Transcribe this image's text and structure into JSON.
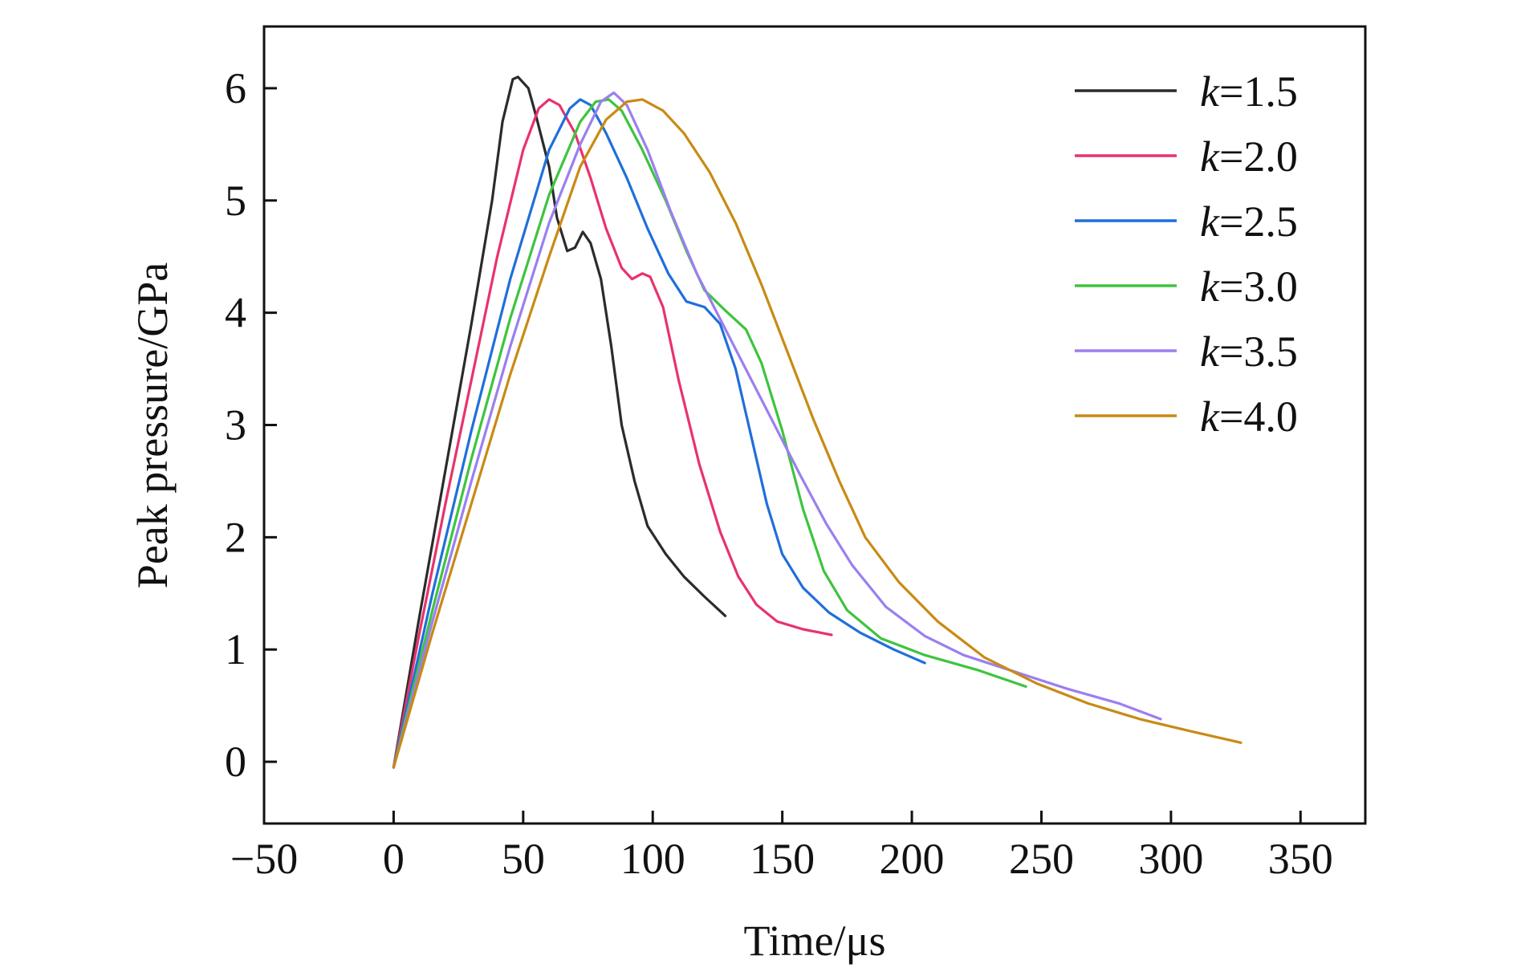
{
  "chart_data": {
    "type": "line",
    "title": "",
    "xlabel": "Time/μs",
    "ylabel": "Peak pressure/GPa",
    "xlim": [
      -50,
      375
    ],
    "ylim": [
      -0.55,
      6.55
    ],
    "xticks": [
      -50,
      0,
      50,
      100,
      150,
      200,
      250,
      300,
      350
    ],
    "xtick_labels": [
      "−50",
      "0",
      "50",
      "100",
      "150",
      "200",
      "250",
      "300",
      "350"
    ],
    "yticks": [
      0,
      1,
      2,
      3,
      4,
      5,
      6
    ],
    "ytick_labels": [
      "0",
      "1",
      "2",
      "3",
      "4",
      "5",
      "6"
    ],
    "grid": false,
    "legend": {
      "position": "top-right",
      "prefix": "k",
      "separator": "="
    },
    "series": [
      {
        "name": "1.5",
        "color": "#2b2b2b",
        "points": [
          [
            0,
            -0.05
          ],
          [
            10,
            1.3
          ],
          [
            20,
            2.6
          ],
          [
            30,
            3.9
          ],
          [
            38,
            5.0
          ],
          [
            42,
            5.7
          ],
          [
            46,
            6.08
          ],
          [
            48,
            6.1
          ],
          [
            52,
            6.0
          ],
          [
            55,
            5.75
          ],
          [
            60,
            5.3
          ],
          [
            63,
            4.85
          ],
          [
            67,
            4.55
          ],
          [
            70,
            4.58
          ],
          [
            73,
            4.72
          ],
          [
            76,
            4.62
          ],
          [
            80,
            4.3
          ],
          [
            84,
            3.7
          ],
          [
            88,
            3.0
          ],
          [
            93,
            2.5
          ],
          [
            98,
            2.1
          ],
          [
            105,
            1.85
          ],
          [
            112,
            1.65
          ],
          [
            120,
            1.47
          ],
          [
            128,
            1.3
          ]
        ]
      },
      {
        "name": "2.0",
        "color": "#e8336b",
        "points": [
          [
            0,
            -0.05
          ],
          [
            10,
            1.15
          ],
          [
            20,
            2.3
          ],
          [
            30,
            3.4
          ],
          [
            40,
            4.5
          ],
          [
            50,
            5.45
          ],
          [
            56,
            5.82
          ],
          [
            60,
            5.9
          ],
          [
            64,
            5.85
          ],
          [
            70,
            5.6
          ],
          [
            76,
            5.2
          ],
          [
            82,
            4.75
          ],
          [
            88,
            4.4
          ],
          [
            92,
            4.3
          ],
          [
            96,
            4.35
          ],
          [
            99,
            4.32
          ],
          [
            104,
            4.05
          ],
          [
            110,
            3.4
          ],
          [
            118,
            2.65
          ],
          [
            126,
            2.05
          ],
          [
            133,
            1.65
          ],
          [
            140,
            1.4
          ],
          [
            148,
            1.25
          ],
          [
            158,
            1.18
          ],
          [
            169,
            1.13
          ]
        ]
      },
      {
        "name": "2.5",
        "color": "#1f6fdb",
        "points": [
          [
            0,
            -0.05
          ],
          [
            15,
            1.5
          ],
          [
            30,
            2.95
          ],
          [
            45,
            4.3
          ],
          [
            60,
            5.45
          ],
          [
            68,
            5.82
          ],
          [
            72,
            5.9
          ],
          [
            76,
            5.85
          ],
          [
            82,
            5.6
          ],
          [
            90,
            5.2
          ],
          [
            98,
            4.75
          ],
          [
            106,
            4.35
          ],
          [
            113,
            4.1
          ],
          [
            120,
            4.05
          ],
          [
            126,
            3.9
          ],
          [
            132,
            3.5
          ],
          [
            138,
            2.9
          ],
          [
            144,
            2.3
          ],
          [
            150,
            1.85
          ],
          [
            158,
            1.55
          ],
          [
            168,
            1.33
          ],
          [
            180,
            1.15
          ],
          [
            193,
            1.0
          ],
          [
            205,
            0.88
          ]
        ]
      },
      {
        "name": "3.0",
        "color": "#3ec43e",
        "points": [
          [
            0,
            -0.05
          ],
          [
            15,
            1.35
          ],
          [
            30,
            2.7
          ],
          [
            45,
            3.95
          ],
          [
            60,
            5.05
          ],
          [
            72,
            5.7
          ],
          [
            78,
            5.88
          ],
          [
            83,
            5.9
          ],
          [
            88,
            5.8
          ],
          [
            96,
            5.45
          ],
          [
            105,
            5.0
          ],
          [
            113,
            4.55
          ],
          [
            120,
            4.2
          ],
          [
            128,
            4.02
          ],
          [
            136,
            3.85
          ],
          [
            142,
            3.55
          ],
          [
            150,
            2.95
          ],
          [
            158,
            2.25
          ],
          [
            166,
            1.7
          ],
          [
            175,
            1.35
          ],
          [
            188,
            1.1
          ],
          [
            205,
            0.95
          ],
          [
            225,
            0.82
          ],
          [
            244,
            0.67
          ]
        ]
      },
      {
        "name": "3.5",
        "color": "#9b7ff0",
        "points": [
          [
            0,
            -0.05
          ],
          [
            15,
            1.25
          ],
          [
            30,
            2.5
          ],
          [
            45,
            3.7
          ],
          [
            60,
            4.8
          ],
          [
            72,
            5.5
          ],
          [
            80,
            5.88
          ],
          [
            85,
            5.96
          ],
          [
            90,
            5.85
          ],
          [
            98,
            5.45
          ],
          [
            107,
            4.9
          ],
          [
            117,
            4.35
          ],
          [
            127,
            3.9
          ],
          [
            137,
            3.45
          ],
          [
            147,
            3.0
          ],
          [
            157,
            2.55
          ],
          [
            167,
            2.12
          ],
          [
            177,
            1.75
          ],
          [
            190,
            1.38
          ],
          [
            205,
            1.12
          ],
          [
            220,
            0.95
          ],
          [
            240,
            0.8
          ],
          [
            260,
            0.65
          ],
          [
            280,
            0.52
          ],
          [
            296,
            0.38
          ]
        ]
      },
      {
        "name": "4.0",
        "color": "#c98a14",
        "points": [
          [
            0,
            -0.05
          ],
          [
            15,
            1.15
          ],
          [
            30,
            2.3
          ],
          [
            45,
            3.45
          ],
          [
            60,
            4.5
          ],
          [
            72,
            5.3
          ],
          [
            82,
            5.72
          ],
          [
            90,
            5.88
          ],
          [
            96,
            5.9
          ],
          [
            104,
            5.8
          ],
          [
            112,
            5.6
          ],
          [
            122,
            5.25
          ],
          [
            132,
            4.8
          ],
          [
            142,
            4.25
          ],
          [
            152,
            3.65
          ],
          [
            162,
            3.05
          ],
          [
            172,
            2.5
          ],
          [
            182,
            2.0
          ],
          [
            195,
            1.6
          ],
          [
            210,
            1.25
          ],
          [
            228,
            0.93
          ],
          [
            248,
            0.7
          ],
          [
            268,
            0.52
          ],
          [
            288,
            0.38
          ],
          [
            308,
            0.27
          ],
          [
            327,
            0.17
          ]
        ]
      }
    ]
  }
}
